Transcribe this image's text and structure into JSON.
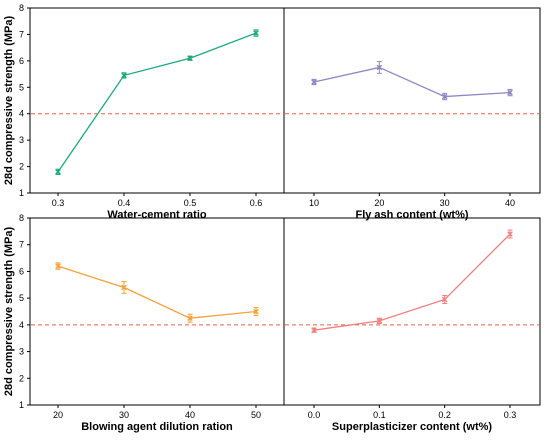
{
  "figure": {
    "y_axis_title": "28d compressive strength (MPa)",
    "reference_line_value": 4,
    "reference_line_color": "#e8604c"
  },
  "chart_data": [
    {
      "type": "line",
      "panel": "top-left",
      "xlabel": "Water-cement ratio",
      "ylabel": "28d compressive strength (MPa)",
      "x": [
        "0.3",
        "0.4",
        "0.5",
        "0.6"
      ],
      "x_ticks": [
        "0.3",
        "0.4",
        "0.5",
        "0.6"
      ],
      "values": [
        1.8,
        5.45,
        6.1,
        7.05
      ],
      "errors": [
        0.1,
        0.1,
        0.08,
        0.12
      ],
      "ylim": [
        1,
        8
      ],
      "y_ticks": [
        "1",
        "2",
        "3",
        "4",
        "5",
        "6",
        "7",
        "8"
      ],
      "color": "#1aaa78",
      "marker": "x"
    },
    {
      "type": "line",
      "panel": "top-right",
      "xlabel": "Fly ash content (wt%)",
      "ylabel": "",
      "x": [
        "10",
        "20",
        "30",
        "40"
      ],
      "x_ticks": [
        "10",
        "20",
        "30",
        "40"
      ],
      "values": [
        5.2,
        5.75,
        4.65,
        4.8
      ],
      "errors": [
        0.1,
        0.22,
        0.12,
        0.12
      ],
      "ylim": [
        1,
        8
      ],
      "y_ticks": [],
      "color": "#8e86c4",
      "marker": "x"
    },
    {
      "type": "line",
      "panel": "bottom-left",
      "xlabel": "Blowing agent dilution ration",
      "ylabel": "28d compressive strength (MPa)",
      "x": [
        "20",
        "30",
        "40",
        "50"
      ],
      "x_ticks": [
        "20",
        "30",
        "40",
        "50"
      ],
      "values": [
        6.2,
        5.4,
        4.25,
        4.5
      ],
      "errors": [
        0.12,
        0.22,
        0.15,
        0.15
      ],
      "ylim": [
        1,
        8
      ],
      "y_ticks": [
        "1",
        "2",
        "3",
        "4",
        "5",
        "6",
        "7",
        "8"
      ],
      "color": "#f4a23a",
      "marker": "x"
    },
    {
      "type": "line",
      "panel": "bottom-right",
      "xlabel": "Superplasticizer content (wt%)",
      "ylabel": "",
      "x": [
        "0.0",
        "0.1",
        "0.2",
        "0.3"
      ],
      "x_ticks": [
        "0.0",
        "0.1",
        "0.2",
        "0.3"
      ],
      "values": [
        3.8,
        4.15,
        4.95,
        7.4
      ],
      "errors": [
        0.08,
        0.1,
        0.15,
        0.15
      ],
      "ylim": [
        1,
        8
      ],
      "y_ticks": [],
      "color": "#f07f7f",
      "marker": "x"
    }
  ]
}
